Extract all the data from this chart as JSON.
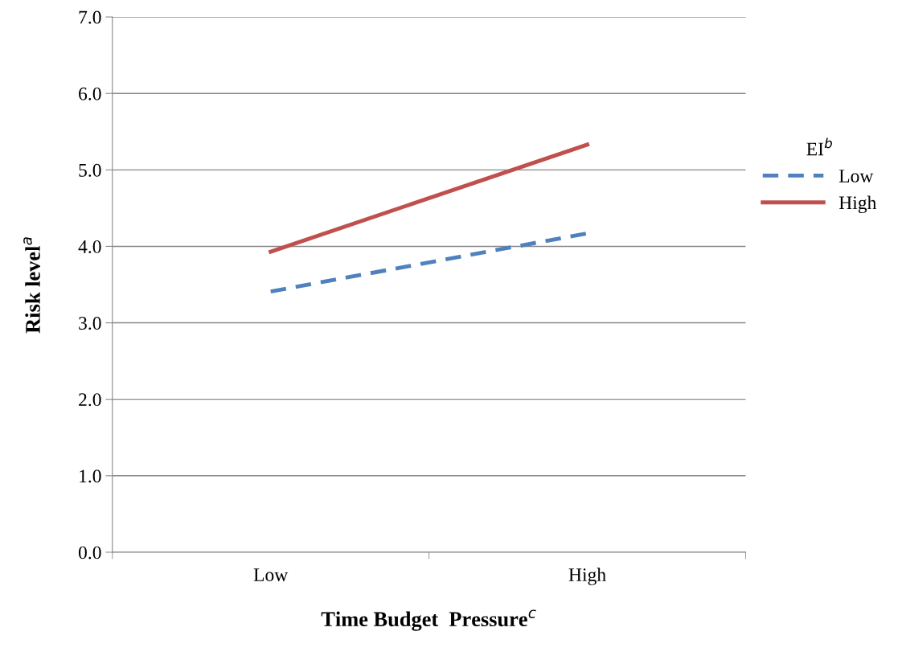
{
  "chart_data": {
    "type": "line",
    "xlabel": "Time Budget  Pressure$^{c}$",
    "ylabel": "Risk level$^{a}$",
    "legend_title": "EI$^{b}$",
    "categories": [
      "Low",
      "High"
    ],
    "series": [
      {
        "name": "Low",
        "color": "#4f81bd",
        "line_style": "dashed",
        "values": [
          3.41,
          4.17
        ]
      },
      {
        "name": "High",
        "color": "#c0504d",
        "line_style": "solid",
        "values": [
          3.93,
          5.33
        ]
      }
    ],
    "ylim": [
      0,
      7
    ],
    "yticks": [
      {
        "value": 0,
        "label": "0.0"
      },
      {
        "value": 1,
        "label": "1.0"
      },
      {
        "value": 2,
        "label": "2.0"
      },
      {
        "value": 3,
        "label": "3.0"
      },
      {
        "value": 4,
        "label": "4.0"
      },
      {
        "value": 5,
        "label": "5.0"
      },
      {
        "value": 6,
        "label": "6.0"
      },
      {
        "value": 7,
        "label": "7.0"
      }
    ],
    "grid": "y",
    "legend": "right",
    "marker": "none"
  }
}
